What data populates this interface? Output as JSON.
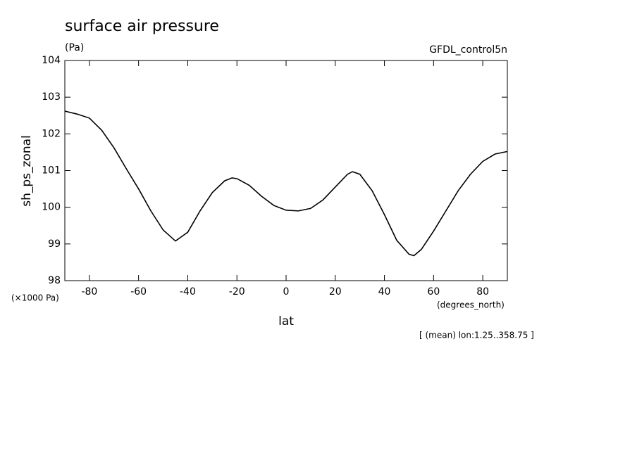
{
  "chart_data": {
    "type": "line",
    "title": "surface air pressure",
    "units": "(Pa)",
    "dataset": "GFDL_control5n",
    "y_label": "sh_ps_zonal",
    "y_scale_note": "(×1000 Pa)",
    "x_label": "lat",
    "x_units": "(degrees_north)",
    "note": "[ (mean) lon:1.25..358.75 ]",
    "x": [
      -90,
      -85,
      -80,
      -75,
      -70,
      -65,
      -60,
      -55,
      -50,
      -45,
      -40,
      -35,
      -30,
      -25,
      -22,
      -20,
      -15,
      -10,
      -5,
      0,
      5,
      10,
      15,
      20,
      25,
      27,
      30,
      35,
      40,
      45,
      50,
      52,
      55,
      60,
      65,
      70,
      75,
      80,
      85,
      90
    ],
    "series": [
      {
        "name": "sh_ps_zonal",
        "color": "#000000",
        "values": [
          102.62,
          102.54,
          102.43,
          102.1,
          101.62,
          101.05,
          100.5,
          99.9,
          99.38,
          99.08,
          99.32,
          99.9,
          100.4,
          100.72,
          100.8,
          100.78,
          100.6,
          100.3,
          100.05,
          99.92,
          99.9,
          99.97,
          100.2,
          100.55,
          100.9,
          100.97,
          100.9,
          100.45,
          99.8,
          99.1,
          98.72,
          98.68,
          98.85,
          99.35,
          99.9,
          100.45,
          100.9,
          101.25,
          101.45,
          101.52
        ]
      }
    ],
    "xlim": [
      -90,
      90
    ],
    "xticks": [
      -80,
      -60,
      -40,
      -20,
      0,
      20,
      40,
      60,
      80
    ],
    "ylim": [
      98,
      104
    ],
    "yticks": [
      98,
      99,
      100,
      101,
      102,
      103,
      104
    ]
  }
}
